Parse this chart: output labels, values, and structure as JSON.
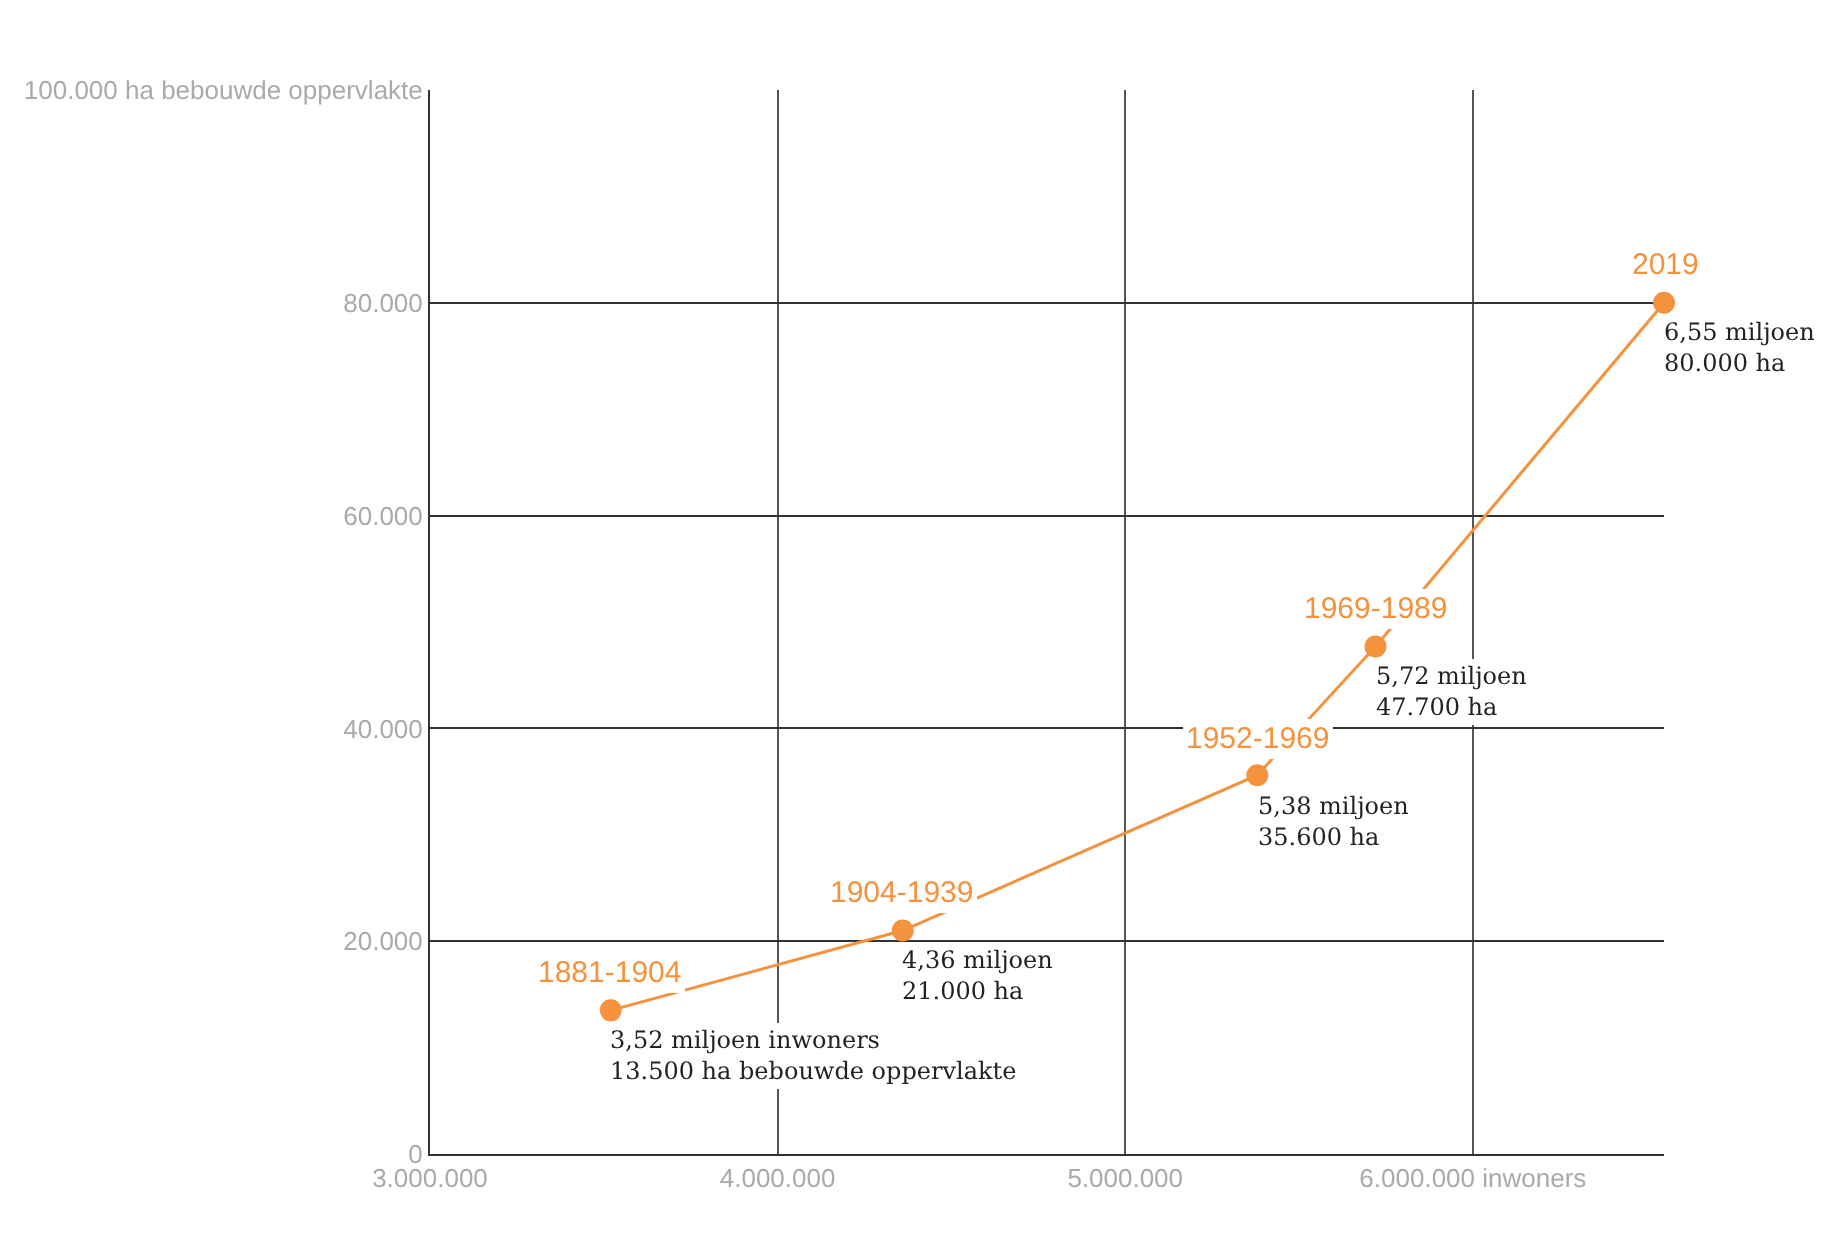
{
  "chart_data": {
    "type": "line",
    "marker": "circle",
    "line_style": "solid",
    "grid": true,
    "x": [
      3520000,
      4360000,
      5380000,
      5720000,
      6550000
    ],
    "series": [
      {
        "color": "#f5923e",
        "values": [
          13500,
          21000,
          35600,
          47700,
          80000
        ]
      }
    ],
    "xlim": [
      3000000,
      6550000
    ],
    "xticks": [
      {
        "value": 3000000,
        "label": "3.000.000"
      },
      {
        "value": 4000000,
        "label": "4.000.000"
      },
      {
        "value": 5000000,
        "label": "5.000.000"
      },
      {
        "value": 6000000,
        "label": "6.000.000 inwoners"
      }
    ],
    "ylim": [
      0,
      100000
    ],
    "yticks": [
      0,
      {
        "value": 20000,
        "label": "20.000"
      },
      {
        "value": 40000,
        "label": "40.000"
      },
      {
        "value": 60000,
        "label": "60.000"
      },
      {
        "value": 80000,
        "label": "80.000"
      },
      {
        "value": 100000,
        "label": "100.000 ha bebouwde oppervlakte"
      }
    ],
    "annotations": [
      {
        "text": "1881-1904",
        "x": 3520000,
        "y": 13500
      },
      {
        "text": "3,52 miljoen inwoners\n13.500 ha bebouwde oppervlakte",
        "x": 3520000,
        "y": 13500
      },
      {
        "text": "1904-1939",
        "x": 4360000,
        "y": 21000
      },
      {
        "text": "4,36 miljoen\n21.000 ha",
        "x": 4360000,
        "y": 21000
      },
      {
        "text": "1952-1969",
        "x": 5380000,
        "y": 35600
      },
      {
        "text": "5,38 miljoen\n35.600 ha",
        "x": 5380000,
        "y": 35600
      },
      {
        "text": "1969-1989",
        "x": 5720000,
        "y": 47700
      },
      {
        "text": "5,72 miljoen\n47.700 ha",
        "x": 5720000,
        "y": 47700
      },
      {
        "text": "2019",
        "x": 6550000,
        "y": 80000
      },
      {
        "text": "6,55 miljoen\n80.000 ha",
        "x": 6550000,
        "y": 80000
      }
    ]
  }
}
